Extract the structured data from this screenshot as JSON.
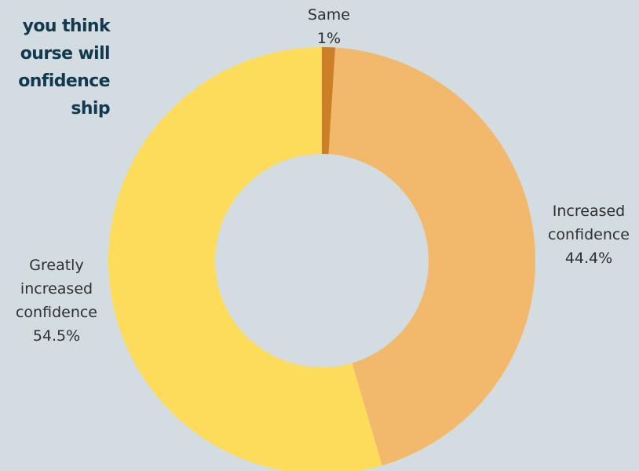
{
  "chart_data": {
    "type": "pie",
    "title_lines": [
      "you think",
      "ourse will",
      "onfidence",
      "ship"
    ],
    "categories": [
      "Same",
      "Increased confidence",
      "Greatly increased confidence"
    ],
    "values": [
      1,
      44.4,
      54.5
    ],
    "value_labels": [
      "1%",
      "44.4%",
      "54.5%"
    ],
    "label_lines": [
      [
        "Same"
      ],
      [
        "Increased",
        "confidence"
      ],
      [
        "Greatly",
        "increased",
        "confidence"
      ]
    ],
    "colors": [
      "#cc8026",
      "#f2b86c",
      "#fddc5c"
    ],
    "donut": true
  }
}
